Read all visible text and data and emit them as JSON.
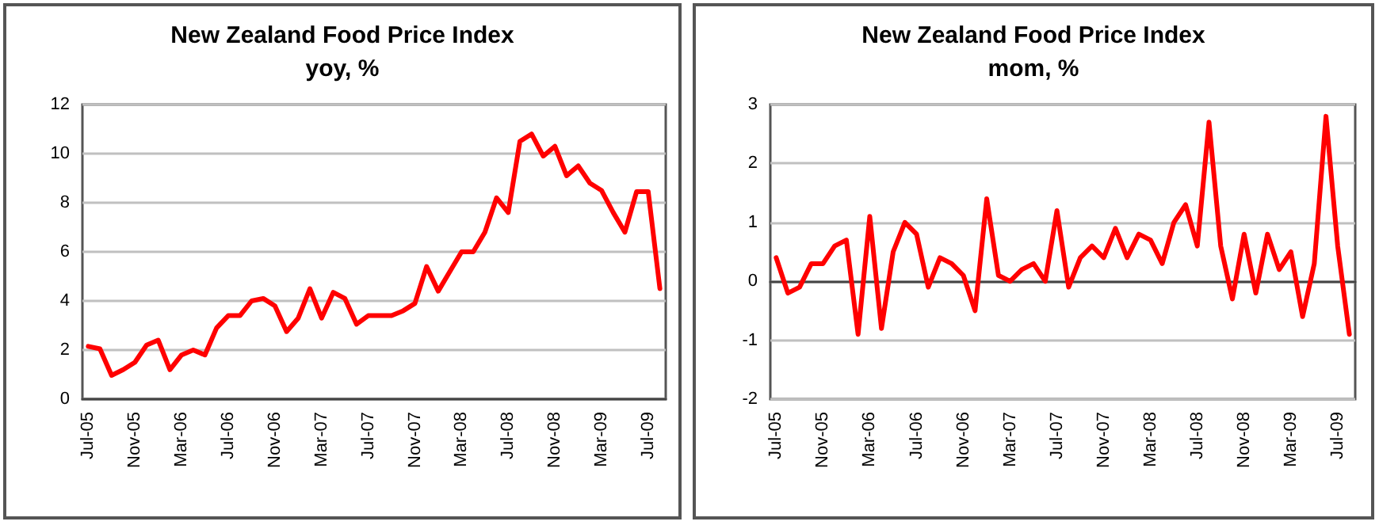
{
  "chart_data": [
    {
      "type": "line",
      "title": "New Zealand Food Price Index",
      "subtitle": "yoy, %",
      "categories": [
        "Jul-05",
        null,
        null,
        null,
        "Nov-05",
        null,
        null,
        null,
        "Mar-06",
        null,
        null,
        null,
        "Jul-06",
        null,
        null,
        null,
        "Nov-06",
        null,
        null,
        null,
        "Mar-07",
        null,
        null,
        null,
        "Jul-07",
        null,
        null,
        null,
        "Nov-07",
        null,
        null,
        null,
        "Mar-08",
        null,
        null,
        null,
        "Jul-08",
        null,
        null,
        null,
        "Nov-08",
        null,
        null,
        null,
        "Mar-09",
        null,
        null,
        null,
        "Jul-09",
        null
      ],
      "series": [
        {
          "color": "#ff0000",
          "values": [
            2.15,
            2.05,
            0.97,
            1.2,
            1.5,
            2.2,
            2.4,
            1.2,
            1.8,
            2.0,
            1.8,
            2.9,
            3.4,
            3.4,
            4.0,
            4.1,
            3.8,
            2.75,
            3.3,
            4.5,
            3.3,
            4.35,
            4.1,
            3.05,
            3.4,
            3.4,
            3.4,
            3.6,
            3.9,
            5.4,
            4.4,
            5.2,
            6.0,
            6.0,
            6.8,
            8.2,
            7.6,
            10.5,
            10.8,
            9.9,
            10.3,
            9.1,
            9.5,
            8.8,
            8.5,
            7.6,
            6.8,
            8.45,
            8.45,
            4.5
          ]
        }
      ],
      "ylim": [
        0,
        12
      ],
      "yticks": [
        0,
        2,
        4,
        6,
        8,
        10,
        12
      ],
      "grid": "y",
      "marker": "none",
      "line_style": "solid"
    },
    {
      "type": "line",
      "title": "New Zealand Food Price Index",
      "subtitle": "mom, %",
      "categories": [
        "Jul-05",
        null,
        null,
        null,
        "Nov-05",
        null,
        null,
        null,
        "Mar-06",
        null,
        null,
        null,
        "Jul-06",
        null,
        null,
        null,
        "Nov-06",
        null,
        null,
        null,
        "Mar-07",
        null,
        null,
        null,
        "Jul-07",
        null,
        null,
        null,
        "Nov-07",
        null,
        null,
        null,
        "Mar-08",
        null,
        null,
        null,
        "Jul-08",
        null,
        null,
        null,
        "Nov-08",
        null,
        null,
        null,
        "Mar-09",
        null,
        null,
        null,
        "Jul-09",
        null
      ],
      "series": [
        {
          "color": "#ff0000",
          "values": [
            0.4,
            -0.2,
            -0.1,
            0.3,
            0.3,
            0.6,
            0.7,
            -0.9,
            1.1,
            -0.8,
            0.5,
            1.0,
            0.8,
            -0.1,
            0.4,
            0.3,
            0.1,
            -0.5,
            1.4,
            0.1,
            0.0,
            0.2,
            0.3,
            0.0,
            1.2,
            -0.1,
            0.4,
            0.6,
            0.4,
            0.9,
            0.4,
            0.8,
            0.7,
            0.3,
            1.0,
            1.3,
            0.6,
            2.7,
            0.6,
            -0.3,
            0.8,
            -0.2,
            0.8,
            0.2,
            0.5,
            -0.6,
            0.3,
            2.8,
            0.6,
            -0.9
          ]
        }
      ],
      "ylim": [
        -2,
        3
      ],
      "yticks": [
        -2,
        -1,
        0,
        1,
        2,
        3
      ],
      "grid": "y",
      "marker": "none",
      "line_style": "solid"
    }
  ]
}
